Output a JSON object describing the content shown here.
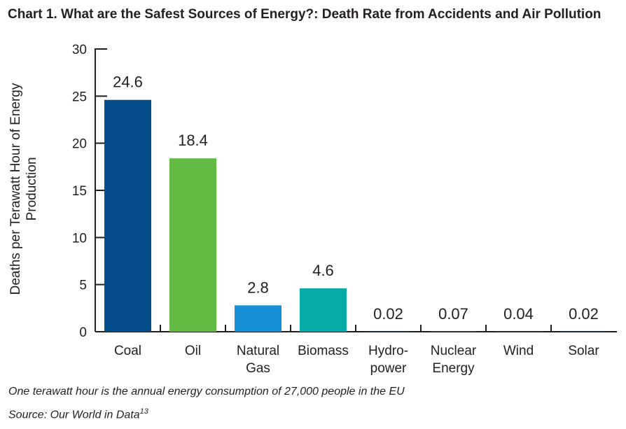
{
  "title": "Chart 1. What are the Safest Sources of Energy?: Death Rate from Accidents and Air Pollution",
  "footnote": "One terawatt hour is the annual energy consumption of 27,000 people in the EU",
  "source": "Source: Our World in Data",
  "source_ref": "13",
  "chart_data": {
    "type": "bar",
    "title": "Chart 1. What are the Safest Sources of Energy?: Death Rate from Accidents and Air Pollution",
    "ylabel": "Deaths per Terawatt Hour of Energy Production",
    "xlabel": "",
    "ylim": [
      0,
      30
    ],
    "yticks": [
      0,
      5,
      10,
      15,
      20,
      25,
      30
    ],
    "categories": [
      [
        "Coal"
      ],
      [
        "Oil"
      ],
      [
        "Natural",
        "Gas"
      ],
      [
        "Biomass"
      ],
      [
        "Hydro-",
        "power"
      ],
      [
        "Nuclear",
        "Energy"
      ],
      [
        "Wind"
      ],
      [
        "Solar"
      ]
    ],
    "values": [
      24.6,
      18.4,
      2.8,
      4.6,
      0.02,
      0.07,
      0.04,
      0.02
    ],
    "value_labels": [
      "24.6",
      "18.4",
      "2.8",
      "4.6",
      "0.02",
      "0.07",
      "0.04",
      "0.02"
    ],
    "colors": [
      "#054d8a",
      "#63bb46",
      "#1890d7",
      "#08aba6",
      "#054d8a",
      "#054d8a",
      "#054d8a",
      "#054d8a"
    ],
    "grid": false,
    "legend": "none"
  }
}
